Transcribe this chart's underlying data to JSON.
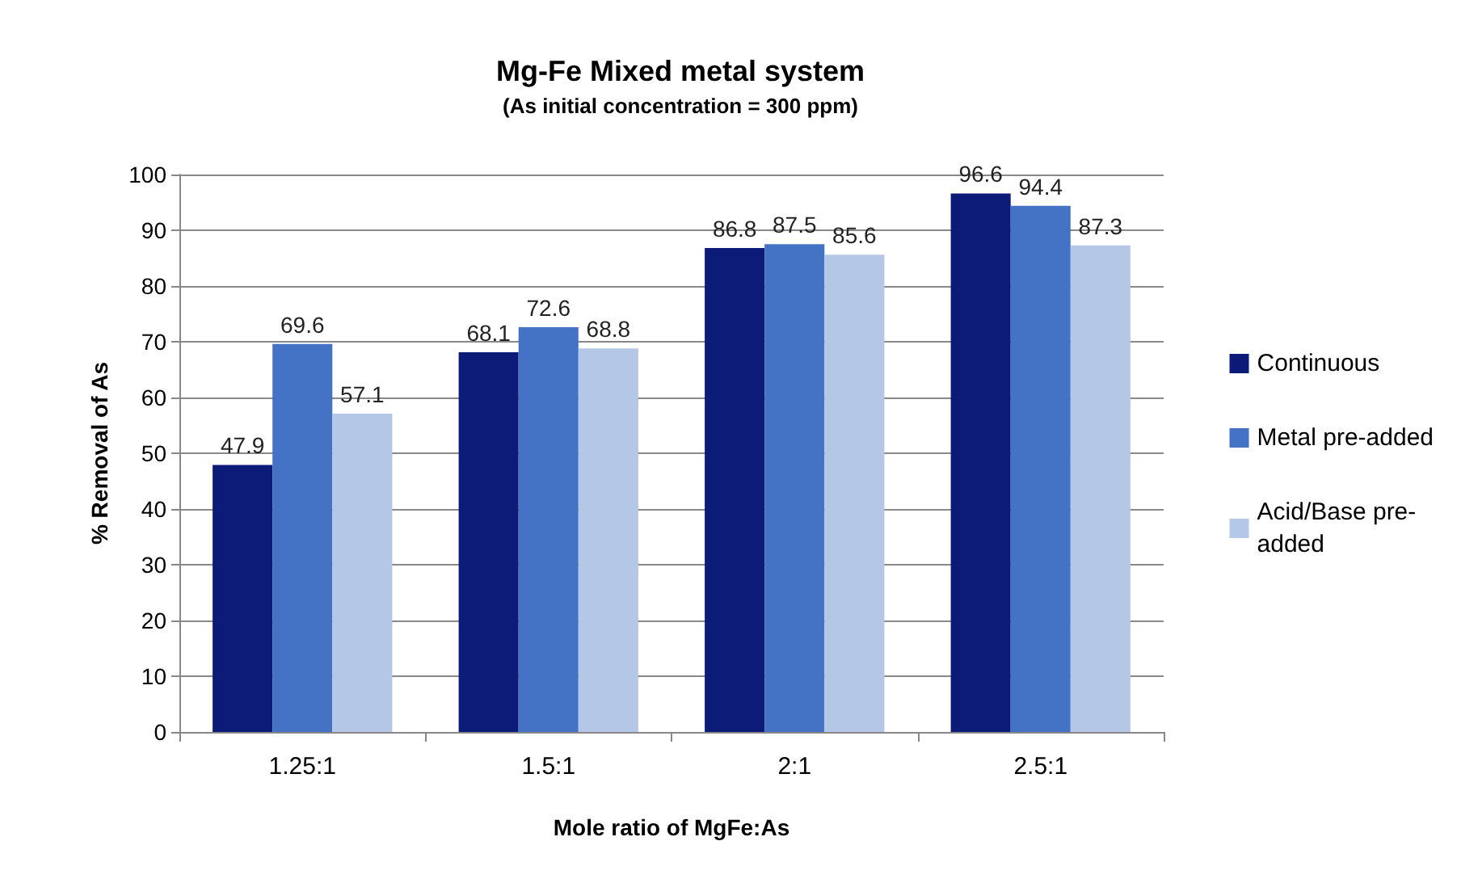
{
  "chart_data": {
    "type": "bar",
    "title": "Mg-Fe Mixed metal system",
    "subtitle": "(As initial concentration = 300 ppm)",
    "xlabel": "Mole ratio of MgFe:As",
    "ylabel": "% Removal of As",
    "categories": [
      "1.25:1",
      "1.5:1",
      "2:1",
      "2.5:1"
    ],
    "series": [
      {
        "name": "Continuous",
        "color": "#0c1a78",
        "values": [
          47.9,
          68.1,
          86.8,
          96.6
        ]
      },
      {
        "name": "Metal pre-added",
        "color": "#4472c4",
        "values": [
          69.6,
          72.6,
          87.5,
          94.4
        ]
      },
      {
        "name": "Acid/Base pre-added",
        "color": "#b4c7e7",
        "values": [
          57.1,
          68.8,
          85.6,
          87.3
        ]
      }
    ],
    "ylim": [
      0,
      100
    ],
    "yticks": [
      0,
      10,
      20,
      30,
      40,
      50,
      60,
      70,
      80,
      90,
      100
    ],
    "grid": "y",
    "legend": "right",
    "data_labels": true
  }
}
